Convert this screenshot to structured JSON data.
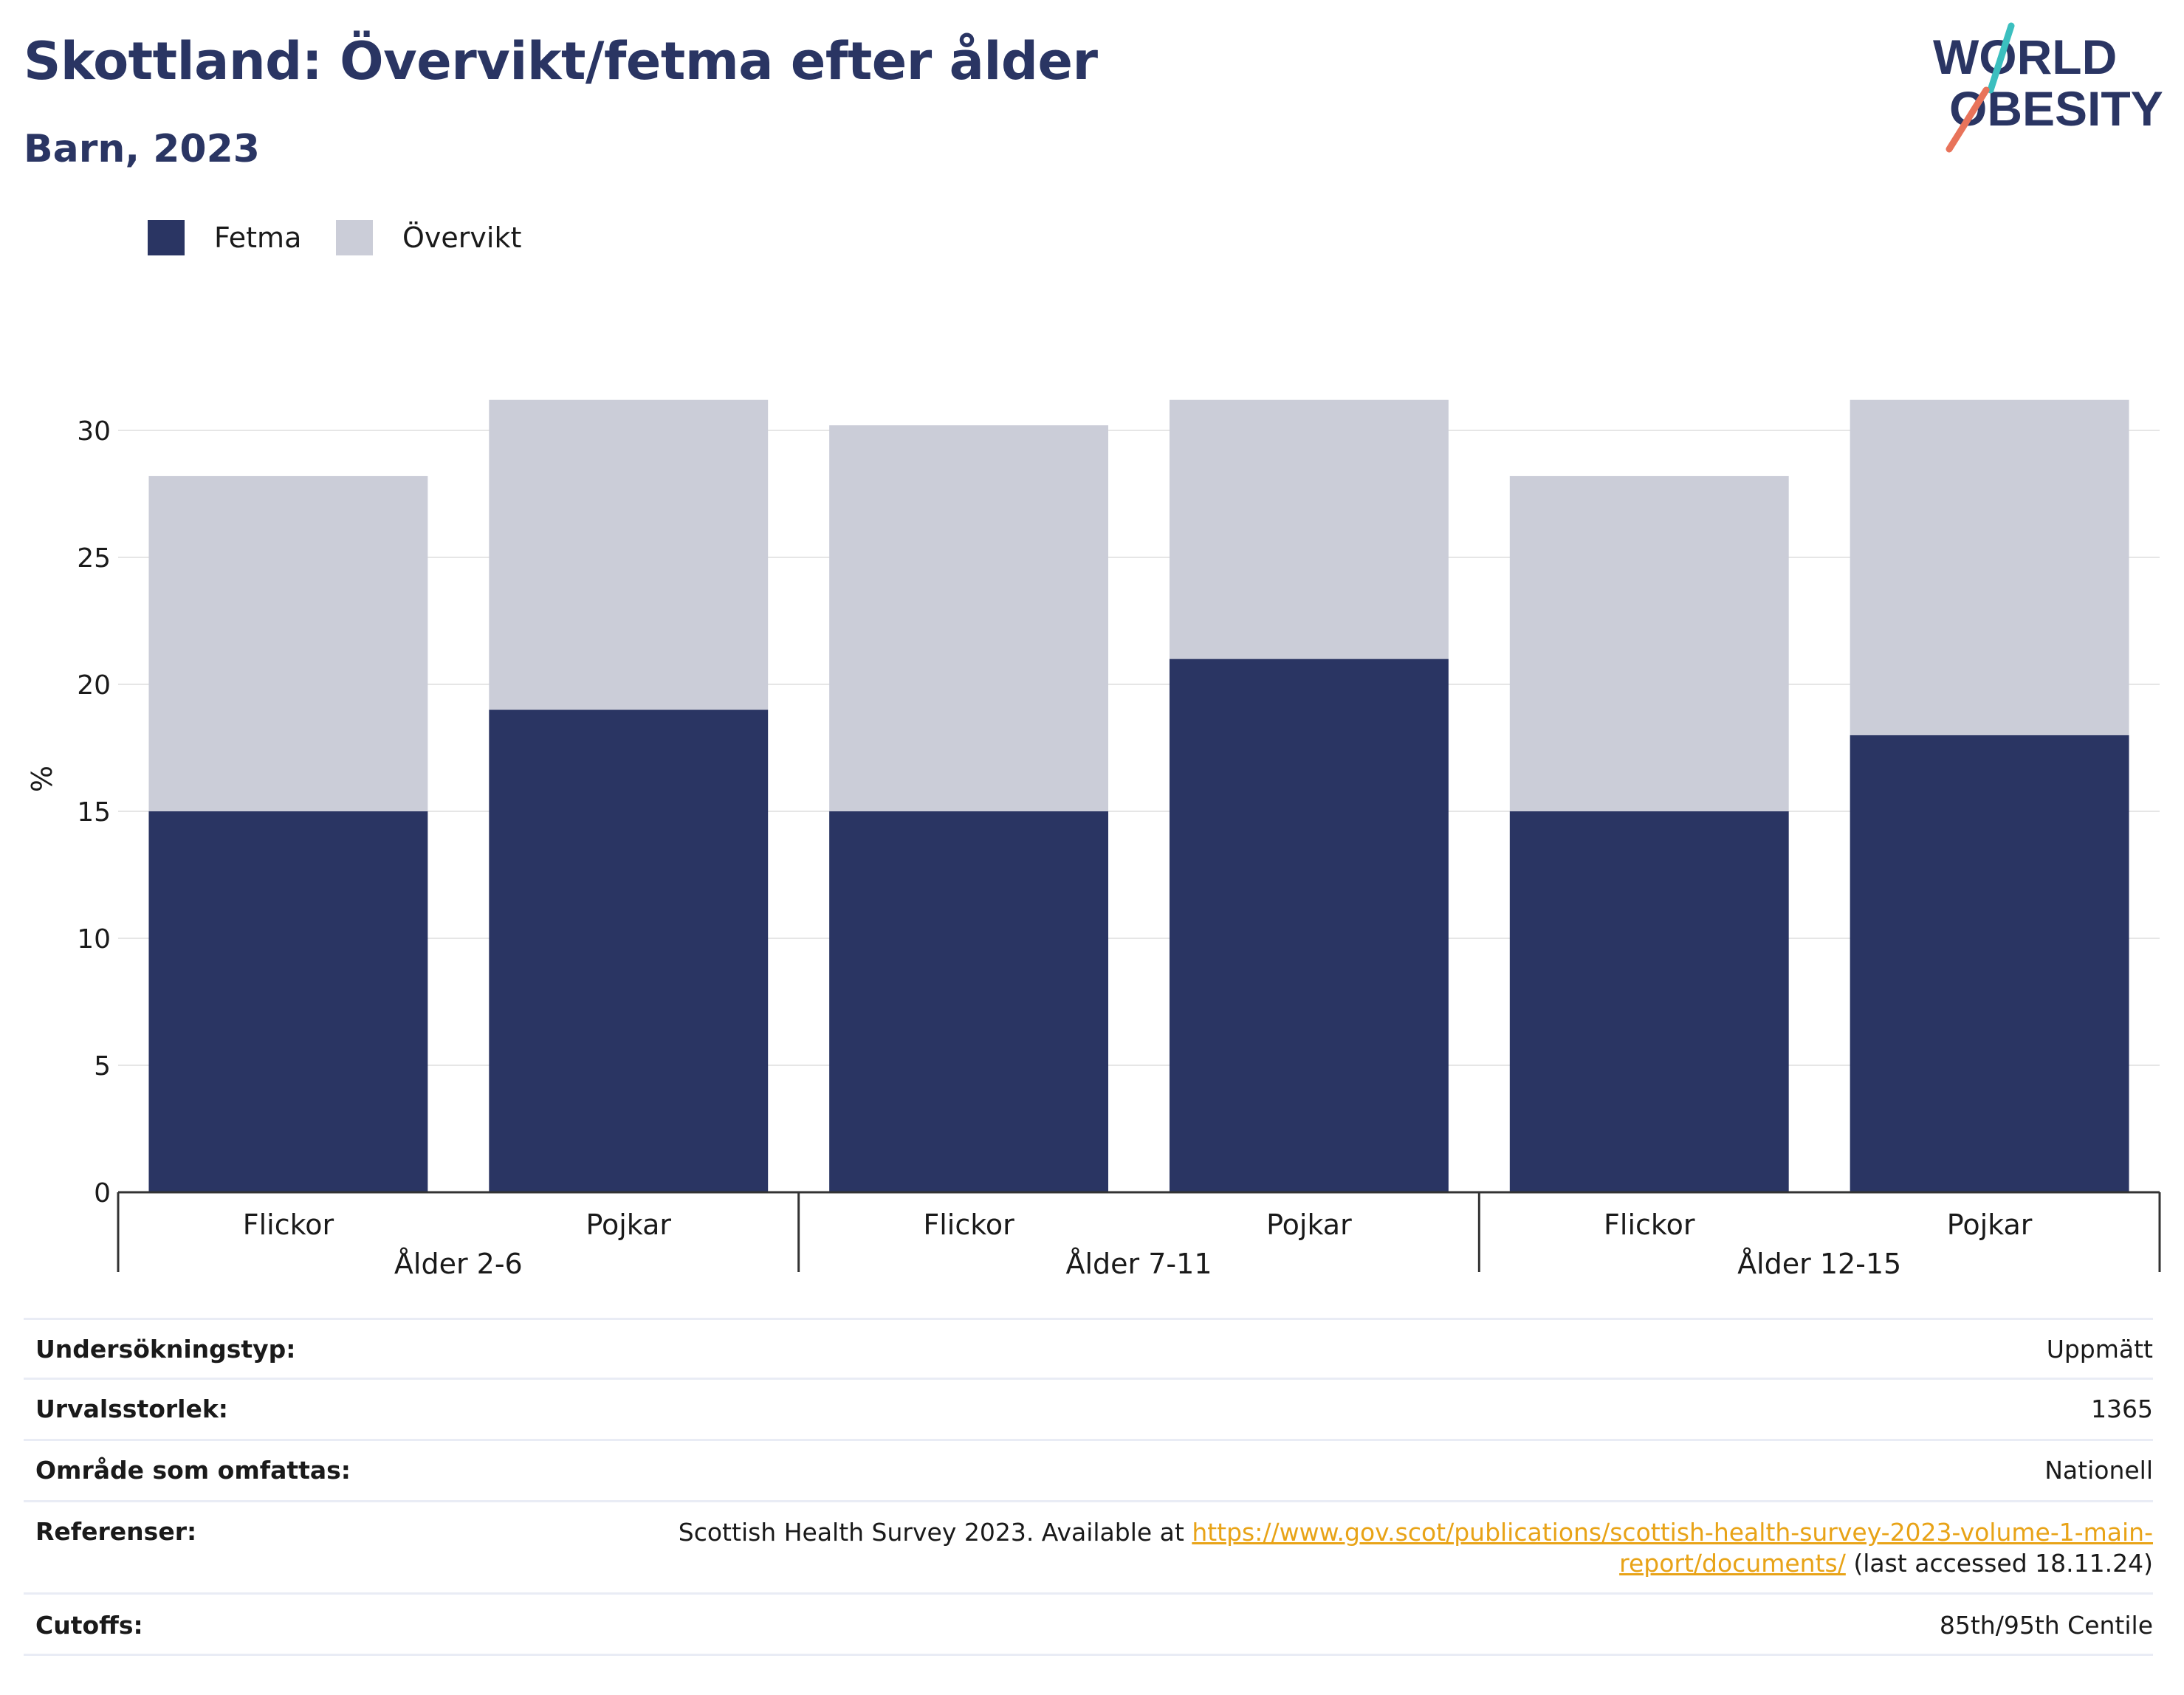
{
  "header": {
    "title": "Skottland: Övervikt/fetma efter ålder",
    "subtitle": "Barn, 2023"
  },
  "logo": {
    "line1": "WORLD",
    "line2": "OBESITY"
  },
  "colors": {
    "obesity": "#2a3563",
    "overweight": "#cbcdd8",
    "grid": "#e6e6e6",
    "axis": "#333333",
    "logo_text": "#2a3563",
    "logo_teal": "#3bbfbf",
    "logo_coral": "#e8735a"
  },
  "chart_data": {
    "type": "bar",
    "stacked": true,
    "title": "Skottland: Övervikt/fetma efter ålder",
    "subtitle": "Barn, 2023",
    "ylabel": "%",
    "ylim": [
      0,
      31.5
    ],
    "yticks": [
      0,
      5,
      10,
      15,
      20,
      25,
      30
    ],
    "grid": true,
    "legend_position": "top-left",
    "groups": [
      "Ålder 2-6",
      "Ålder 7-11",
      "Ålder 12-15"
    ],
    "categories": [
      "Flickor",
      "Pojkar",
      "Flickor",
      "Pojkar",
      "Flickor",
      "Pojkar"
    ],
    "category_group": [
      0,
      0,
      1,
      1,
      2,
      2
    ],
    "series": [
      {
        "name": "Fetma",
        "values": [
          15,
          19,
          15,
          21,
          15,
          18
        ]
      },
      {
        "name": "Övervikt",
        "values": [
          13.2,
          12.2,
          15.2,
          10.2,
          13.2,
          13.2
        ]
      }
    ]
  },
  "info_table": [
    {
      "key": "Undersökningstyp:",
      "value": "Uppmätt"
    },
    {
      "key": "Urvalsstorlek:",
      "value": "1365"
    },
    {
      "key": "Område som omfattas:",
      "value": "Nationell"
    },
    {
      "key": "Referenser:",
      "value_prefix": "Scottish Health Survey 2023. Available at ",
      "link_line1": "https://www.gov.scot/publications/scottish-health-survey-2023-volume-1-main-",
      "link_line2": "report/documents/",
      "value_suffix": " (last accessed 18.11.24)"
    },
    {
      "key": "Cutoffs:",
      "value": "85th/95th Centile"
    }
  ]
}
